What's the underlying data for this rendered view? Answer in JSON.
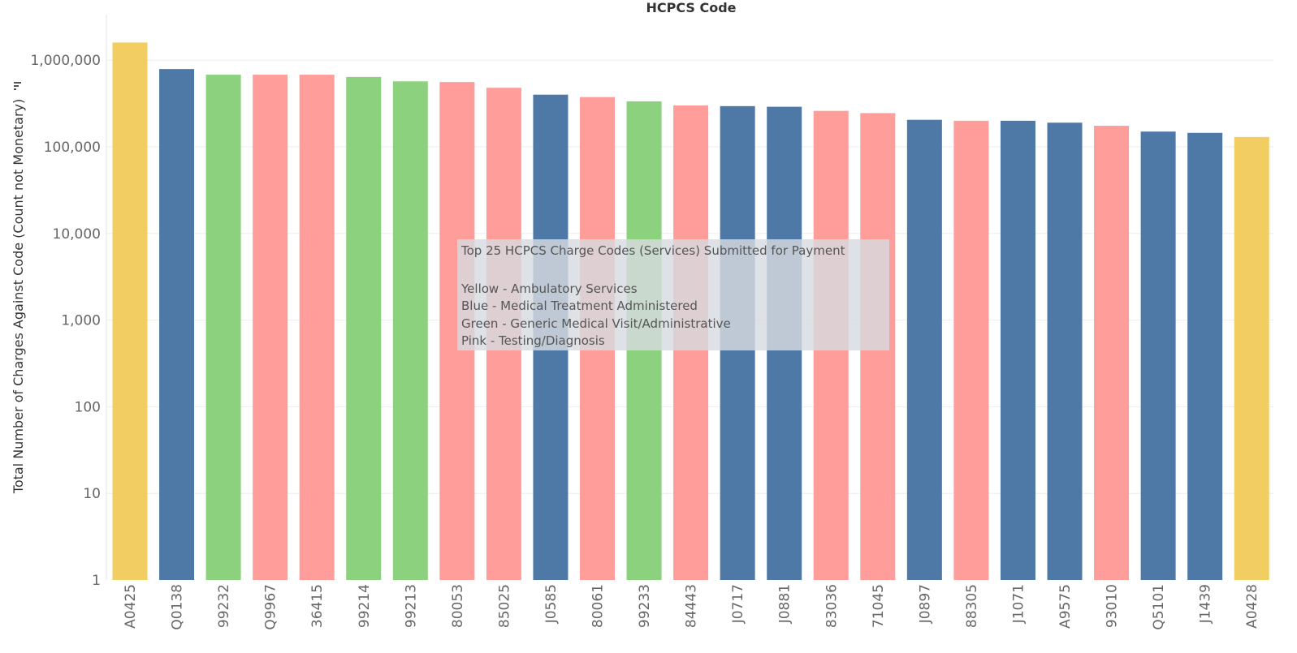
{
  "chart_data": {
    "type": "bar",
    "title": "HCPCS Code",
    "ylabel": "Total Number of Charges Against Code (Count not Monetary)",
    "xlabel": "",
    "yscale": "log",
    "ylim": [
      1,
      3000000
    ],
    "yticks": [
      1,
      10,
      100,
      1000,
      10000,
      100000,
      1000000
    ],
    "ytick_labels": [
      "1",
      "10",
      "100",
      "1,000",
      "10,000",
      "100,000",
      "1,000,000"
    ],
    "grid": true,
    "categories": [
      "A0425",
      "Q0138",
      "99232",
      "Q9967",
      "36415",
      "99214",
      "99213",
      "80053",
      "85025",
      "J0585",
      "80061",
      "99233",
      "84443",
      "J0717",
      "J0881",
      "83036",
      "71045",
      "J0897",
      "88305",
      "J1071",
      "A9575",
      "93010",
      "Q5101",
      "J1439",
      "A0428"
    ],
    "values": [
      1600000,
      790000,
      680000,
      680000,
      680000,
      640000,
      570000,
      560000,
      480000,
      400000,
      375000,
      335000,
      300000,
      295000,
      290000,
      260000,
      245000,
      205000,
      200000,
      200000,
      190000,
      175000,
      150000,
      145000,
      130000
    ],
    "bar_groups": [
      "Yellow",
      "Blue",
      "Green",
      "Pink",
      "Pink",
      "Green",
      "Green",
      "Pink",
      "Pink",
      "Blue",
      "Pink",
      "Green",
      "Pink",
      "Blue",
      "Blue",
      "Pink",
      "Pink",
      "Blue",
      "Pink",
      "Blue",
      "Blue",
      "Pink",
      "Blue",
      "Blue",
      "Yellow"
    ],
    "group_colors": {
      "Yellow": "#f1cd62",
      "Blue": "#4e79a7",
      "Green": "#8cd17d",
      "Pink": "#ff9d9a"
    },
    "annotation": {
      "title": "Top 25 HCPCS Charge Codes (Services) Submitted for Payment",
      "lines": [
        "Yellow - Ambulatory Services",
        "Blue - Medical Treatment Administered",
        "Green - Generic Medical Visit/Administrative",
        "Pink - Testing/Diagnosis"
      ]
    }
  }
}
